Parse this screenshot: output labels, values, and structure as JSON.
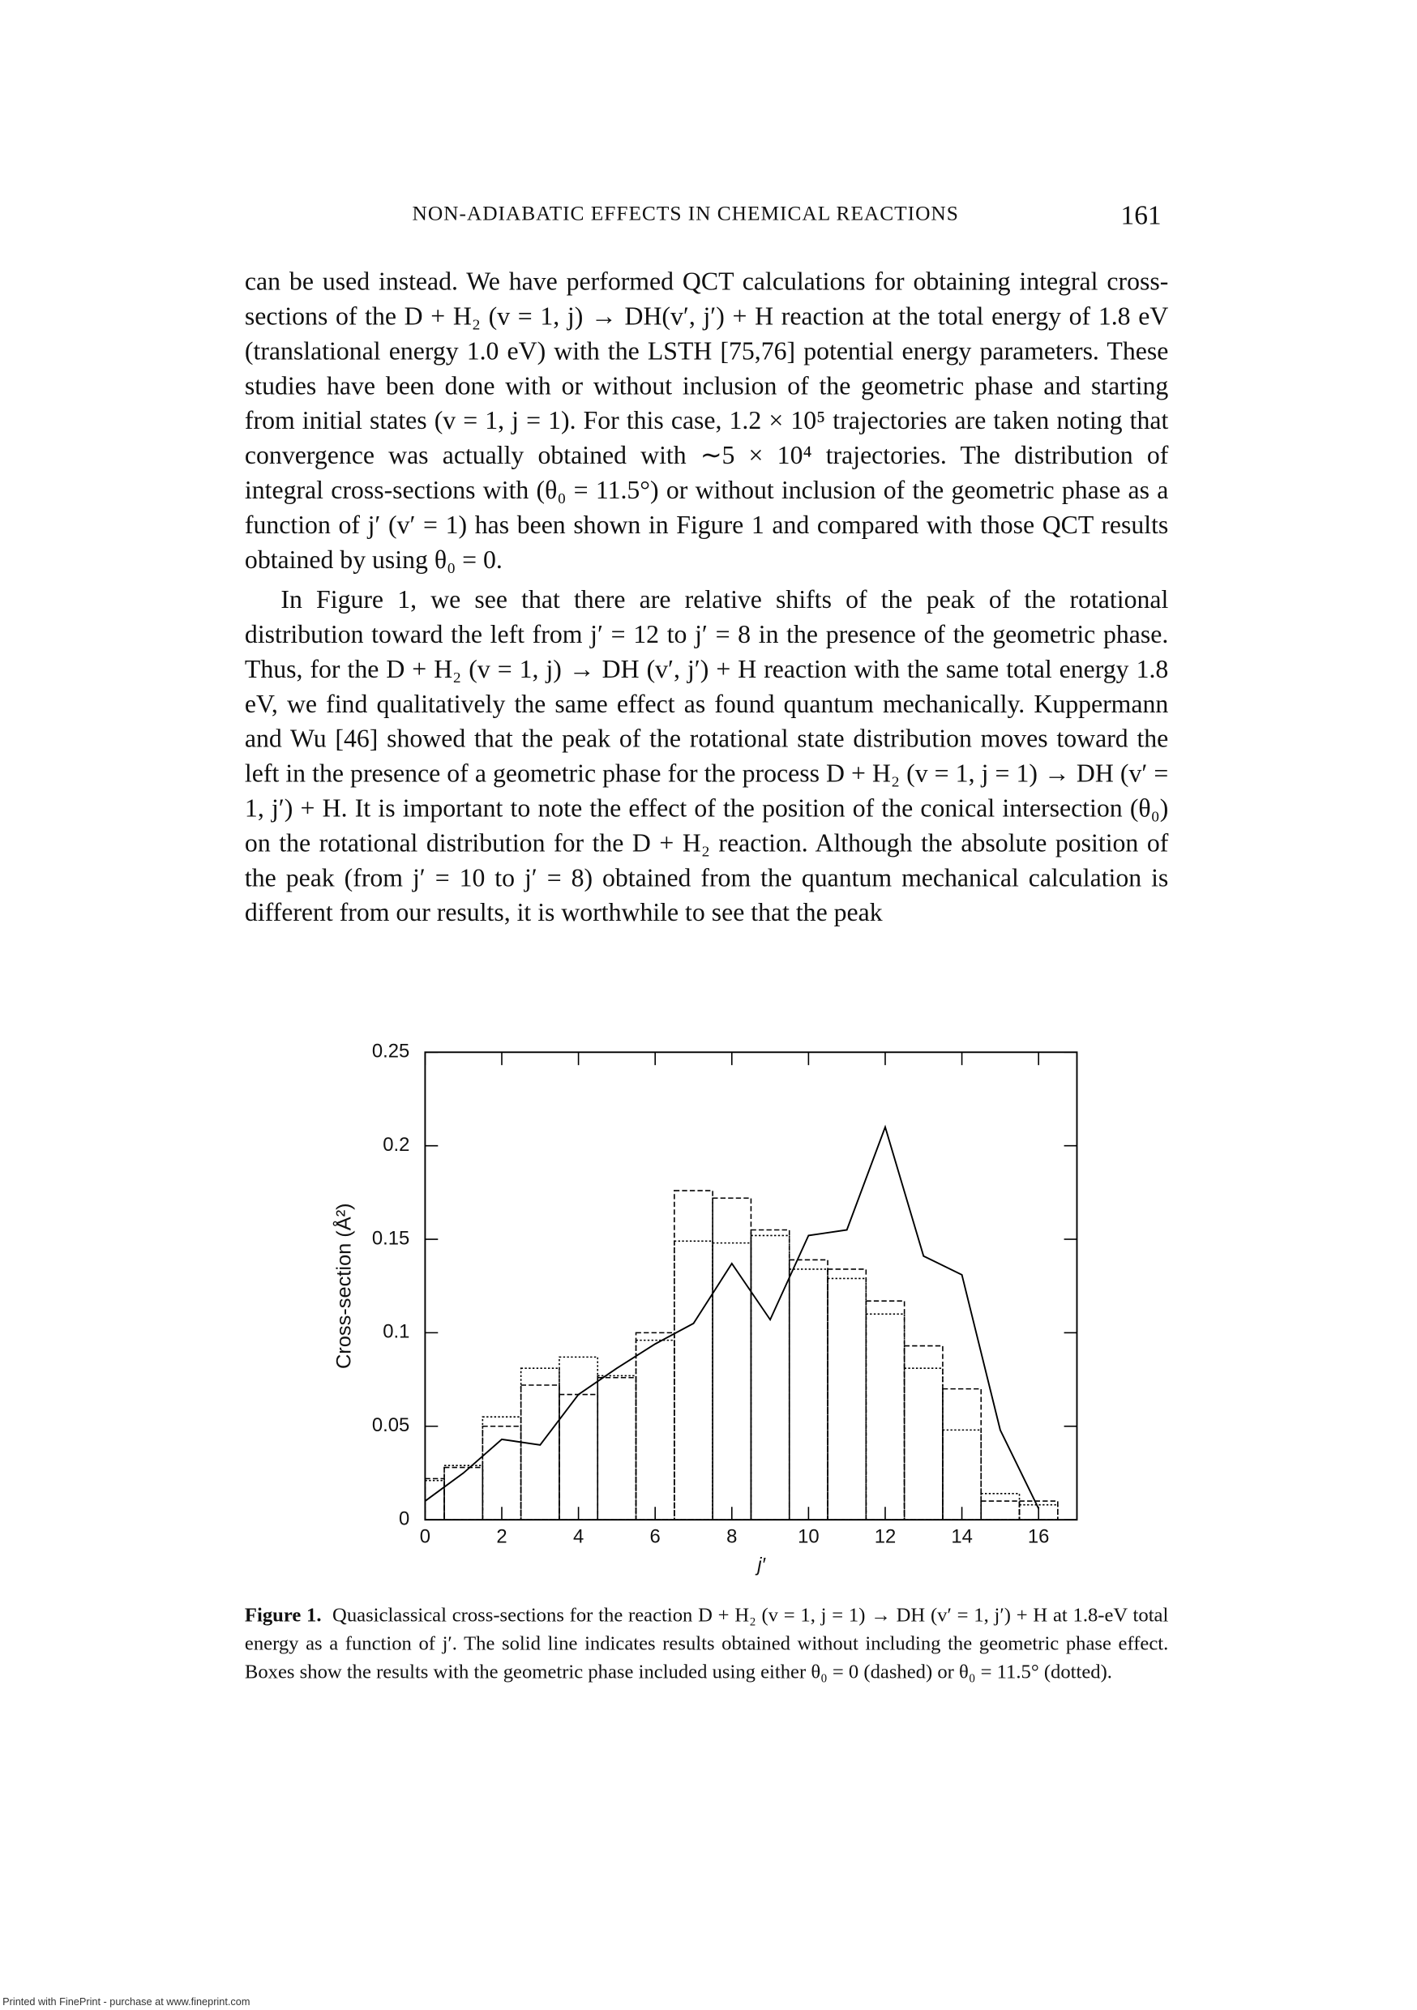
{
  "header": {
    "running_title": "NON-ADIABATIC EFFECTS IN CHEMICAL REACTIONS",
    "page_number": "161"
  },
  "body": {
    "paragraphs": [
      "can be used instead. We have performed QCT calculations for obtaining integral cross-sections of the D + H₂ (v = 1, j) → DH(v′, j′) + H reaction at the total energy of 1.8 eV (translational energy 1.0 eV) with the LSTH [75,76] potential energy parameters. These studies have been done with or without inclusion of the geometric phase and starting from initial states (v = 1, j = 1). For this case, 1.2 × 10⁵ trajectories are taken noting that convergence was actually obtained with ∼5 × 10⁴ trajectories. The distribution of integral cross-sections with (θ₀ = 11.5°) or without inclusion of the geometric phase as a function of j′ (v′ = 1) has been shown in Figure 1 and compared with those QCT results obtained by using θ₀ = 0.",
      "In Figure 1, we see that there are relative shifts of the peak of the rotational distribution toward the left from j′ = 12 to j′ = 8 in the presence of the geometric phase. Thus, for the D + H₂ (v = 1, j) → DH (v′, j′) + H reaction with the same total energy 1.8 eV, we find qualitatively the same effect as found quantum mechanically. Kuppermann and Wu [46] showed that the peak of the rotational state distribution moves toward the left in the presence of a geometric phase for the process D + H₂ (v = 1, j = 1) → DH (v′ = 1, j′) + H. It is important to note the effect of the position of the conical intersection (θ₀) on the rotational distribution for the D + H₂ reaction. Although the absolute position of the peak (from j′ = 10 to j′ = 8) obtained from the quantum mechanical calculation is different from our results, it is worthwhile to see that the peak"
    ]
  },
  "chart_data": {
    "type": "bar",
    "xlabel": "j′",
    "ylabel": "Cross-section (Å²)",
    "x": [
      0,
      1,
      2,
      3,
      4,
      5,
      6,
      7,
      8,
      9,
      10,
      11,
      12,
      13,
      14,
      15,
      16
    ],
    "xlim": [
      0,
      17
    ],
    "xticks": [
      0,
      2,
      4,
      6,
      8,
      10,
      12,
      14,
      16
    ],
    "ylim": [
      0,
      0.25
    ],
    "yticks": [
      0,
      0.05,
      0.1,
      0.15,
      0.2,
      0.25
    ],
    "series": [
      {
        "kind": "line",
        "color": "#000000",
        "values": [
          0.01,
          0.025,
          0.043,
          0.04,
          0.067,
          0.081,
          0.094,
          0.105,
          0.137,
          0.107,
          0.152,
          0.155,
          0.21,
          0.141,
          0.131,
          0.048,
          0.006
        ]
      },
      {
        "kind": "dashed",
        "color": "#000000",
        "values": [
          0.022,
          0.028,
          0.05,
          0.072,
          0.067,
          0.076,
          0.1,
          0.176,
          0.172,
          0.155,
          0.139,
          0.134,
          0.117,
          0.093,
          0.07,
          0.01,
          0.01
        ]
      },
      {
        "kind": "dotted",
        "color": "#000000",
        "values": [
          0.021,
          0.029,
          0.055,
          0.081,
          0.087,
          0.077,
          0.096,
          0.149,
          0.148,
          0.152,
          0.134,
          0.129,
          0.11,
          0.081,
          0.048,
          0.014,
          0.008
        ]
      }
    ]
  },
  "caption": {
    "label": "Figure 1.",
    "text": "Quasiclassical cross-sections for the reaction D + H₂ (v = 1, j = 1) → DH (v′ = 1, j′) + H at 1.8-eV total energy as a function of j′. The solid line indicates results obtained without including the geometric phase effect. Boxes show the results with the geometric phase included using either θ₀ = 0 (dashed) or θ₀ = 11.5° (dotted)."
  },
  "footer": "Printed with FinePrint - purchase at www.fineprint.com"
}
